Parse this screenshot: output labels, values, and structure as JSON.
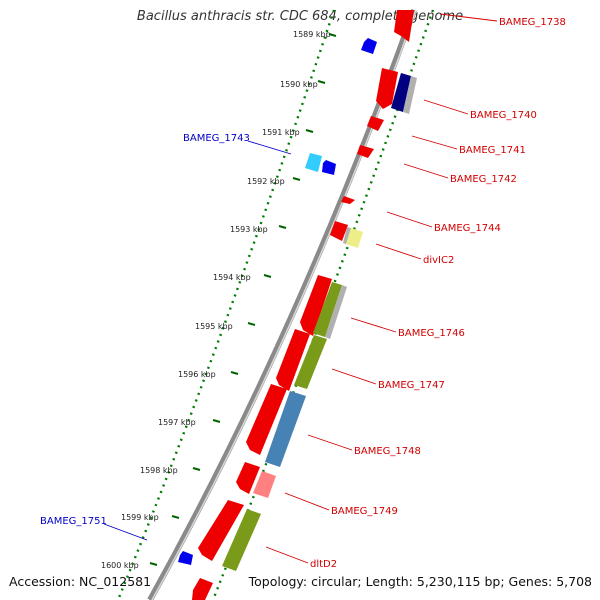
{
  "title": "Bacillus anthracis str. CDC 684, complete genome",
  "footer": {
    "accession": "Accession: NC_012581",
    "summary": "Topology: circular; Length: 5,230,115 bp; Genes: 5,708"
  },
  "scale_labels": [
    "1589 kbp",
    "1590 kbp",
    "1591 kbp",
    "1592 kbp",
    "1593 kbp",
    "1594 kbp",
    "1595 kbp",
    "1596 kbp",
    "1597 kbp",
    "1598 kbp",
    "1599 kbp",
    "1600 kbp"
  ],
  "gene_labels": {
    "right": [
      "BAMEG_1738",
      "BAMEG_1740",
      "BAMEG_1741",
      "BAMEG_1742",
      "BAMEG_1744",
      "divIC2",
      "BAMEG_1746",
      "BAMEG_1747",
      "BAMEG_1748",
      "BAMEG_1749",
      "dltD2"
    ],
    "left": [
      "BAMEG_1743",
      "BAMEG_1751"
    ]
  },
  "colors": {
    "forward_cds": "#ee0000",
    "reverse_cds": "#0000ee",
    "cog_navy": "#000080",
    "cog_cyan": "#33ccff",
    "cog_yellow": "#eeee88",
    "cog_olive": "#7a9a1a",
    "cog_steelblue": "#4682b4",
    "cog_pink": "#ff8080",
    "cog_grey": "#b0b0b0",
    "backbone": "#808080",
    "gc_dots": "#007a00"
  }
}
